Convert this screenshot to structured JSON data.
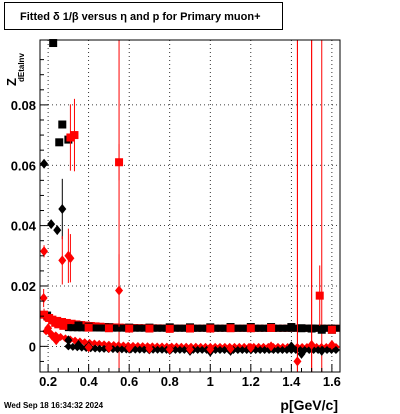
{
  "title_prefix": "Fitted ",
  "title_delta": "δ",
  "title_mid": " 1/",
  "title_beta": "β",
  "title_mid2": " versus ",
  "title_eta": "η",
  "title_suffix": " and p for Primary muon+",
  "timestamp": "Wed Sep 18 16:34:32 2024",
  "chart_data": {
    "type": "scatter",
    "xlabel": "p[GeV/c]",
    "ylabel_main": "Z",
    "ylabel_sub": "dEtaInv",
    "xlim": [
      0.16,
      1.64
    ],
    "ylim": [
      -0.0085,
      0.1015
    ],
    "xticks": [
      0.2,
      0.4,
      0.6,
      0.8,
      1.0,
      1.2,
      1.4,
      1.6
    ],
    "xtick_labels": [
      "0.2",
      "0.4",
      "0.6",
      "0.8",
      "1",
      "1.2",
      "1.4",
      "1.6"
    ],
    "yticks": [
      0,
      0.02,
      0.04,
      0.06,
      0.08
    ],
    "ytick_labels": [
      "0",
      "0.02",
      "0.04",
      "0.06",
      "0.08"
    ],
    "grid": true,
    "colors": {
      "black": "#000000",
      "red": "#ff0000"
    },
    "series": [
      {
        "marker": "square",
        "color": "#000000",
        "points": [
          [
            0.195,
            0.0102,
            0
          ],
          [
            0.225,
            0.1005,
            0
          ],
          [
            0.255,
            0.0676,
            0
          ],
          [
            0.27,
            0.0735,
            0
          ],
          [
            0.3,
            0.0685,
            0
          ],
          [
            0.35,
            0.0069,
            0
          ],
          [
            0.4,
            0.0065,
            0
          ],
          [
            0.5,
            0.0063,
            0
          ],
          [
            0.6,
            0.0062,
            0
          ],
          [
            0.7,
            0.0062,
            0
          ],
          [
            0.8,
            0.0063,
            0
          ],
          [
            0.9,
            0.0063,
            0
          ],
          [
            1.0,
            0.0063,
            0
          ],
          [
            1.1,
            0.0064,
            0
          ],
          [
            1.2,
            0.0064,
            0
          ],
          [
            1.3,
            0.0064,
            0
          ],
          [
            1.4,
            0.0064,
            0
          ],
          [
            1.45,
            0.006,
            0
          ],
          [
            1.5,
            0.0059,
            0
          ],
          [
            1.55,
            0.0055,
            0
          ],
          [
            1.6,
            0.0055,
            0
          ]
        ]
      },
      {
        "marker": "square",
        "color": "#ff0000",
        "points": [
          [
            0.18,
            0.0105,
            0.002
          ],
          [
            0.205,
            0.0094,
            0
          ],
          [
            0.22,
            0.0086,
            0
          ],
          [
            0.235,
            0.0078,
            0
          ],
          [
            0.25,
            0.0073,
            0
          ],
          [
            0.275,
            0.0068,
            0
          ],
          [
            0.31,
            0.0692,
            0.011
          ],
          [
            0.33,
            0.07,
            0.012
          ],
          [
            0.55,
            0.061,
            0.006
          ],
          [
            0.4,
            0.0062,
            0
          ],
          [
            0.5,
            0.006,
            0
          ],
          [
            0.6,
            0.0059,
            0
          ],
          [
            0.7,
            0.0059,
            0
          ],
          [
            0.8,
            0.0058,
            0
          ],
          [
            0.9,
            0.0059,
            0
          ],
          [
            1.0,
            0.0059,
            0
          ],
          [
            1.1,
            0.006,
            0
          ],
          [
            1.2,
            0.006,
            0
          ],
          [
            1.3,
            0.0061,
            0
          ],
          [
            1.54,
            0.0168,
            0.01
          ],
          [
            1.6,
            0.0055,
            0
          ]
        ]
      },
      {
        "marker": "diamond",
        "color": "#000000",
        "points": [
          [
            0.18,
            0.0605,
            0
          ],
          [
            0.215,
            0.0405,
            0
          ],
          [
            0.245,
            0.0385,
            0
          ],
          [
            0.27,
            0.0455,
            0.01
          ],
          [
            0.3,
            0.002,
            0
          ],
          [
            0.35,
            0.0005,
            0
          ],
          [
            0.4,
            0.0,
            0
          ],
          [
            0.5,
            -0.0005,
            0
          ],
          [
            0.6,
            -0.0008,
            0
          ],
          [
            0.7,
            -0.001,
            0
          ],
          [
            0.8,
            -0.0012,
            0
          ],
          [
            0.9,
            -0.0015,
            0
          ],
          [
            1.0,
            -0.0018,
            0
          ],
          [
            1.1,
            -0.0015,
            0
          ],
          [
            1.2,
            -0.001,
            0
          ],
          [
            1.3,
            -0.0005,
            0
          ],
          [
            1.4,
            0.0,
            0
          ],
          [
            1.45,
            -0.0025,
            0
          ],
          [
            1.55,
            -0.0015,
            0
          ]
        ]
      },
      {
        "marker": "diamond",
        "color": "#ff0000",
        "points": [
          [
            0.178,
            0.016,
            0.003
          ],
          [
            0.18,
            0.0315,
            0.002
          ],
          [
            0.2,
            0.006,
            0
          ],
          [
            0.22,
            0.0035,
            0
          ],
          [
            0.24,
            0.002,
            0
          ],
          [
            0.27,
            0.0285,
            0.008
          ],
          [
            0.3,
            0.03,
            0.009
          ],
          [
            0.31,
            0.0292,
            0.008
          ],
          [
            0.55,
            0.0185,
            0.012
          ],
          [
            0.4,
            -0.0003,
            0
          ],
          [
            0.5,
            -0.0005,
            0
          ],
          [
            0.6,
            -0.0005,
            0
          ],
          [
            0.7,
            -0.0008,
            0
          ],
          [
            0.8,
            -0.001,
            0
          ],
          [
            0.9,
            -0.001,
            0
          ],
          [
            1.0,
            -0.001,
            0
          ],
          [
            1.1,
            -0.0008,
            0
          ],
          [
            1.2,
            -0.0005,
            0
          ],
          [
            1.3,
            0.0,
            0
          ],
          [
            1.43,
            -0.005,
            0.12
          ],
          [
            1.5,
            0.0005,
            0.12
          ],
          [
            1.6,
            0.0005,
            0
          ]
        ]
      }
    ],
    "bands": [
      {
        "color": "#ff0000",
        "marker": "square",
        "x_from": 0.2,
        "x_to": 1.62,
        "y_start": 0.0095,
        "y_end": 0.006
      },
      {
        "color": "#ff0000",
        "marker": "diamond",
        "x_from": 0.19,
        "x_to": 1.62,
        "y_start": 0.005,
        "y_end": -0.0002
      },
      {
        "color": "#000000",
        "marker": "square",
        "x_from": 0.3,
        "x_to": 1.62,
        "y_start": 0.0062,
        "y_end": 0.006
      },
      {
        "color": "#000000",
        "marker": "diamond",
        "x_from": 0.3,
        "x_to": 1.62,
        "y_start": 0.0,
        "y_end": -0.0012
      }
    ],
    "vlines": [
      {
        "x": 0.55,
        "color": "#ff0000"
      },
      {
        "x": 1.43,
        "color": "#ff0000"
      },
      {
        "x": 1.5,
        "color": "#ff0000"
      },
      {
        "x": 1.55,
        "color": "#ff0000"
      }
    ]
  }
}
